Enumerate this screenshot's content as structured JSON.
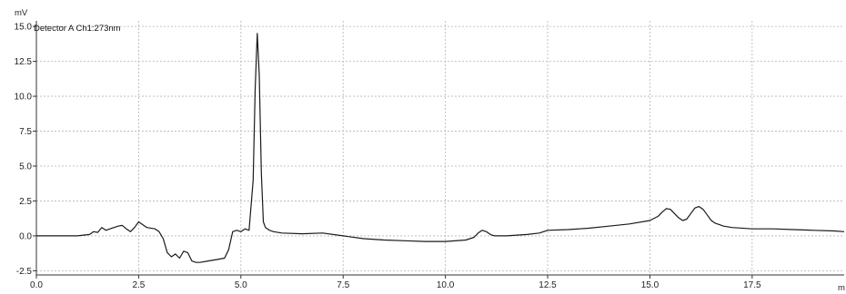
{
  "chart_data": {
    "type": "line",
    "ylabel": "mV",
    "xlabel": "m",
    "legend": "Detector A Ch1:273nm",
    "legend_placement": "top-left",
    "grid": true,
    "xlim": [
      0,
      19.75
    ],
    "ylim": [
      -2.8,
      15.4
    ],
    "x_ticks": [
      0.0,
      2.5,
      5.0,
      7.5,
      10.0,
      12.5,
      15.0,
      17.5
    ],
    "x_tick_labels": [
      "0.0",
      "2.5",
      "5.0",
      "7.5",
      "10.0",
      "12.5",
      "15.0",
      "17.5"
    ],
    "y_ticks": [
      -2.5,
      0.0,
      2.5,
      5.0,
      7.5,
      10.0,
      12.5,
      15.0
    ],
    "y_tick_labels": [
      "-2.5",
      "0.0",
      "2.5",
      "5.0",
      "7.5",
      "10.0",
      "12.5",
      "15.0"
    ],
    "colors": {
      "line": "#1a1a1a",
      "grid": "#b4b4b4",
      "axis": "#333333"
    },
    "series": [
      {
        "x": [
          0.0,
          0.5,
          1.0,
          1.3,
          1.4,
          1.5,
          1.6,
          1.7,
          1.8,
          1.9,
          2.0,
          2.1,
          2.2,
          2.3,
          2.4,
          2.5,
          2.6,
          2.7,
          2.9,
          3.0,
          3.1,
          3.2,
          3.3,
          3.4,
          3.5,
          3.6,
          3.7,
          3.8,
          3.9,
          4.0,
          4.2,
          4.4,
          4.6,
          4.7,
          4.8,
          4.9,
          5.0,
          5.1,
          5.2,
          5.3,
          5.35,
          5.4,
          5.45,
          5.5,
          5.55,
          5.6,
          5.7,
          5.8,
          6.0,
          6.5,
          7.0,
          7.5,
          8.0,
          8.5,
          9.0,
          9.5,
          10.0,
          10.5,
          10.7,
          10.8,
          10.9,
          11.0,
          11.1,
          11.2,
          11.3,
          11.5,
          12.0,
          12.3,
          12.5,
          13.0,
          13.5,
          14.0,
          14.5,
          15.0,
          15.2,
          15.3,
          15.4,
          15.5,
          15.6,
          15.7,
          15.8,
          15.9,
          16.0,
          16.1,
          16.2,
          16.3,
          16.4,
          16.5,
          16.6,
          16.7,
          16.8,
          17.0,
          17.5,
          18.0,
          18.5,
          19.0,
          19.5,
          19.75
        ],
        "y": [
          0.0,
          0.0,
          0.0,
          0.1,
          0.3,
          0.25,
          0.6,
          0.4,
          0.5,
          0.6,
          0.7,
          0.75,
          0.5,
          0.3,
          0.6,
          1.0,
          0.8,
          0.6,
          0.5,
          0.3,
          -0.2,
          -1.2,
          -1.5,
          -1.3,
          -1.6,
          -1.1,
          -1.2,
          -1.8,
          -1.9,
          -1.9,
          -1.8,
          -1.7,
          -1.6,
          -1.0,
          0.3,
          0.4,
          0.3,
          0.5,
          0.4,
          4.0,
          10.5,
          14.5,
          11.5,
          4.5,
          1.0,
          0.6,
          0.4,
          0.3,
          0.2,
          0.15,
          0.2,
          0.0,
          -0.2,
          -0.3,
          -0.35,
          -0.4,
          -0.4,
          -0.3,
          -0.1,
          0.2,
          0.4,
          0.3,
          0.1,
          0.0,
          0.0,
          0.0,
          0.1,
          0.2,
          0.4,
          0.45,
          0.55,
          0.7,
          0.85,
          1.1,
          1.4,
          1.7,
          1.95,
          1.9,
          1.6,
          1.3,
          1.1,
          1.2,
          1.6,
          2.0,
          2.1,
          1.9,
          1.5,
          1.1,
          0.9,
          0.8,
          0.7,
          0.6,
          0.5,
          0.5,
          0.45,
          0.4,
          0.35,
          0.3
        ]
      }
    ]
  }
}
